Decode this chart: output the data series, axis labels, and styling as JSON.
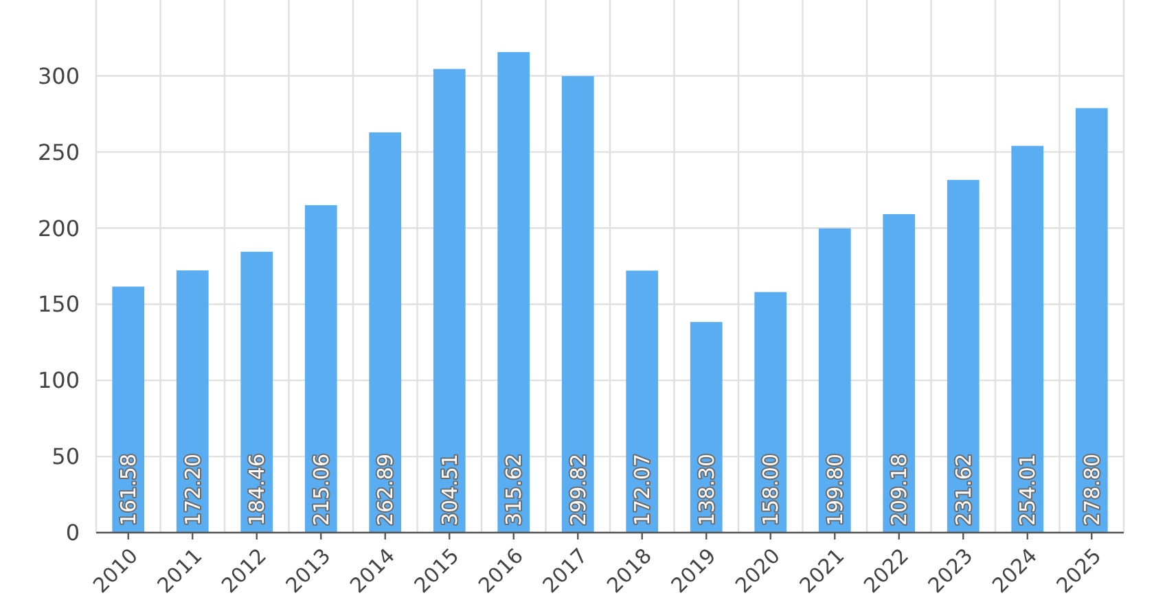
{
  "chart_data": {
    "type": "bar",
    "categories": [
      "2010",
      "2011",
      "2012",
      "2013",
      "2014",
      "2015",
      "2016",
      "2017",
      "2018",
      "2019",
      "2020",
      "2021",
      "2022",
      "2023",
      "2024",
      "2025"
    ],
    "values": [
      161.58,
      172.2,
      184.46,
      215.06,
      262.89,
      304.51,
      315.62,
      299.82,
      172.07,
      138.3,
      158.0,
      199.8,
      209.18,
      231.62,
      254.01,
      278.8
    ],
    "value_labels": [
      "161.58",
      "172.20",
      "184.46",
      "215.06",
      "262.89",
      "304.51",
      "315.62",
      "299.82",
      "172.07",
      "138.30",
      "158.00",
      "199.80",
      "209.18",
      "231.62",
      "254.01",
      "278.80"
    ],
    "color": "#5aadf0",
    "ylim": [
      0,
      348
    ],
    "yticks": [
      0,
      50,
      100,
      150,
      200,
      250,
      300
    ],
    "grid": true
  }
}
